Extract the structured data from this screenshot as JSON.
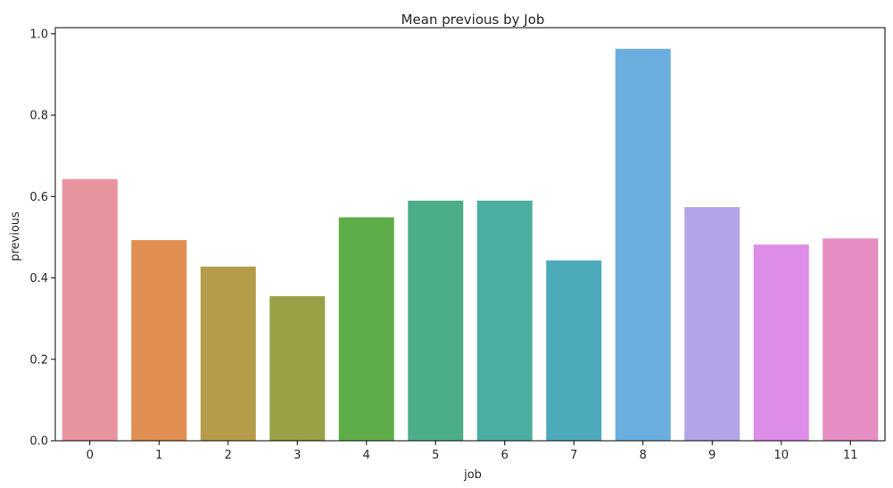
{
  "chart_data": {
    "type": "bar",
    "title": "Mean previous by Job",
    "xlabel": "job",
    "ylabel": "previous",
    "categories": [
      "0",
      "1",
      "2",
      "3",
      "4",
      "5",
      "6",
      "7",
      "8",
      "9",
      "10",
      "11"
    ],
    "values": [
      0.643,
      0.493,
      0.428,
      0.355,
      0.549,
      0.59,
      0.59,
      0.443,
      0.963,
      0.574,
      0.482,
      0.497
    ],
    "colors": [
      "#e8949f",
      "#e08e52",
      "#b69c4a",
      "#9aa045",
      "#5fad49",
      "#4cae88",
      "#4aaea0",
      "#4daabb",
      "#6aaee0",
      "#b3a4e8",
      "#dd8ce8",
      "#e68ec4"
    ],
    "ylim": [
      0,
      1.0
    ],
    "yticks": [
      0.0,
      0.2,
      0.4,
      0.6,
      0.8,
      1.0
    ],
    "ytick_labels": [
      "0.0",
      "0.2",
      "0.4",
      "0.6",
      "0.8",
      "1.0"
    ],
    "grid": false,
    "legend": "none"
  }
}
